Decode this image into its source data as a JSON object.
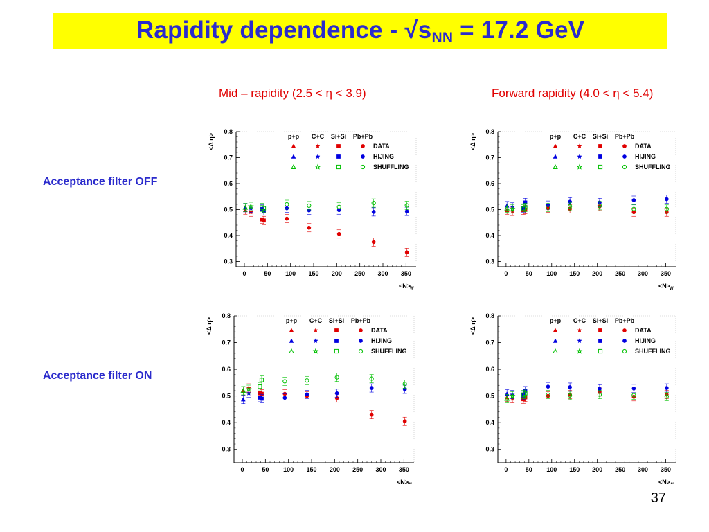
{
  "slide": {
    "title_main": "Rapidity dependence - √s",
    "title_sub": "NN",
    "title_tail": " = 17.2 GeV",
    "page_number": "37"
  },
  "columns": {
    "mid": "Mid – rapidity (2.5 < η < 3.9)",
    "forward": "Forward rapidity (4.0 < η < 5.4)"
  },
  "rows": {
    "off": "Acceptance filter OFF",
    "on": "Acceptance filter ON"
  },
  "colors": {
    "title": "#2b2bcc",
    "title_bar": "#ffff00",
    "column_headers": "#e00000",
    "row_labels": "#2b2bcc",
    "DATA": "#e00000",
    "HIJING": "#0000e0",
    "SHUFFLING": "#00c000"
  },
  "legend": {
    "columns": [
      "p+p",
      "C+C",
      "Si+Si",
      "Pb+Pb"
    ],
    "rows": [
      "DATA",
      "HIJING",
      "SHUFFLING"
    ]
  },
  "chart_data": [
    {
      "id": "mid-off",
      "type": "scatter",
      "xlabel": "<N_W>",
      "ylabel": "<Δ η>",
      "xlim": [
        -18,
        372
      ],
      "ylim": [
        0.28,
        0.8
      ],
      "xticks": [
        0,
        50,
        100,
        150,
        200,
        250,
        300,
        350
      ],
      "yticks": [
        0.3,
        0.4,
        0.5,
        0.6,
        0.7,
        0.8
      ],
      "series": [
        {
          "name": "DATA",
          "points": [
            {
              "x": 2,
              "y": 0.498,
              "sys": "pp"
            },
            {
              "x": 14,
              "y": 0.49,
              "sys": "CC"
            },
            {
              "x": 38,
              "y": 0.462,
              "sys": "SiSi"
            },
            {
              "x": 42,
              "y": 0.458,
              "sys": "SiSi"
            },
            {
              "x": 92,
              "y": 0.465,
              "sys": "PbPb"
            },
            {
              "x": 140,
              "y": 0.43,
              "sys": "PbPb"
            },
            {
              "x": 205,
              "y": 0.406,
              "sys": "PbPb"
            },
            {
              "x": 280,
              "y": 0.375,
              "sys": "PbPb"
            },
            {
              "x": 352,
              "y": 0.335,
              "sys": "PbPb"
            }
          ]
        },
        {
          "name": "HIJING",
          "points": [
            {
              "x": 2,
              "y": 0.507,
              "sys": "pp"
            },
            {
              "x": 14,
              "y": 0.505,
              "sys": "CC"
            },
            {
              "x": 38,
              "y": 0.502,
              "sys": "SiSi"
            },
            {
              "x": 42,
              "y": 0.495,
              "sys": "SiSi"
            },
            {
              "x": 92,
              "y": 0.505,
              "sys": "PbPb"
            },
            {
              "x": 140,
              "y": 0.497,
              "sys": "PbPb"
            },
            {
              "x": 205,
              "y": 0.498,
              "sys": "PbPb"
            },
            {
              "x": 280,
              "y": 0.491,
              "sys": "PbPb"
            },
            {
              "x": 352,
              "y": 0.493,
              "sys": "PbPb"
            }
          ]
        },
        {
          "name": "SHUFFLING",
          "points": [
            {
              "x": 2,
              "y": 0.508,
              "sys": "pp"
            },
            {
              "x": 14,
              "y": 0.512,
              "sys": "CC"
            },
            {
              "x": 38,
              "y": 0.508,
              "sys": "SiSi"
            },
            {
              "x": 42,
              "y": 0.505,
              "sys": "SiSi"
            },
            {
              "x": 92,
              "y": 0.52,
              "sys": "PbPb"
            },
            {
              "x": 140,
              "y": 0.515,
              "sys": "PbPb"
            },
            {
              "x": 205,
              "y": 0.51,
              "sys": "PbPb"
            },
            {
              "x": 280,
              "y": 0.525,
              "sys": "PbPb"
            },
            {
              "x": 352,
              "y": 0.516,
              "sys": "PbPb"
            }
          ]
        }
      ]
    },
    {
      "id": "fwd-off",
      "type": "scatter",
      "xlabel": "<N_W>",
      "ylabel": "<Δ η>",
      "xlim": [
        -18,
        372
      ],
      "ylim": [
        0.28,
        0.8
      ],
      "xticks": [
        0,
        50,
        100,
        150,
        200,
        250,
        300,
        350
      ],
      "yticks": [
        0.3,
        0.4,
        0.5,
        0.6,
        0.7,
        0.8
      ],
      "series": [
        {
          "name": "DATA",
          "points": [
            {
              "x": 2,
              "y": 0.498,
              "sys": "pp"
            },
            {
              "x": 14,
              "y": 0.493,
              "sys": "CC"
            },
            {
              "x": 38,
              "y": 0.497,
              "sys": "SiSi"
            },
            {
              "x": 42,
              "y": 0.5,
              "sys": "SiSi"
            },
            {
              "x": 92,
              "y": 0.505,
              "sys": "PbPb"
            },
            {
              "x": 140,
              "y": 0.503,
              "sys": "PbPb"
            },
            {
              "x": 205,
              "y": 0.512,
              "sys": "PbPb"
            },
            {
              "x": 280,
              "y": 0.49,
              "sys": "PbPb"
            },
            {
              "x": 352,
              "y": 0.49,
              "sys": "PbPb"
            }
          ]
        },
        {
          "name": "HIJING",
          "points": [
            {
              "x": 2,
              "y": 0.515,
              "sys": "pp"
            },
            {
              "x": 14,
              "y": 0.51,
              "sys": "CC"
            },
            {
              "x": 38,
              "y": 0.506,
              "sys": "SiSi"
            },
            {
              "x": 42,
              "y": 0.527,
              "sys": "SiSi"
            },
            {
              "x": 92,
              "y": 0.517,
              "sys": "PbPb"
            },
            {
              "x": 140,
              "y": 0.53,
              "sys": "PbPb"
            },
            {
              "x": 205,
              "y": 0.527,
              "sys": "PbPb"
            },
            {
              "x": 280,
              "y": 0.536,
              "sys": "PbPb"
            },
            {
              "x": 352,
              "y": 0.54,
              "sys": "PbPb"
            }
          ]
        },
        {
          "name": "SHUFFLING",
          "points": [
            {
              "x": 2,
              "y": 0.505,
              "sys": "pp"
            },
            {
              "x": 14,
              "y": 0.502,
              "sys": "CC"
            },
            {
              "x": 38,
              "y": 0.503,
              "sys": "SiSi"
            },
            {
              "x": 42,
              "y": 0.508,
              "sys": "SiSi"
            },
            {
              "x": 92,
              "y": 0.508,
              "sys": "PbPb"
            },
            {
              "x": 140,
              "y": 0.512,
              "sys": "PbPb"
            },
            {
              "x": 205,
              "y": 0.515,
              "sys": "PbPb"
            },
            {
              "x": 280,
              "y": 0.502,
              "sys": "PbPb"
            },
            {
              "x": 352,
              "y": 0.502,
              "sys": "PbPb"
            }
          ]
        }
      ]
    },
    {
      "id": "mid-on",
      "type": "scatter",
      "xlabel": "<N_W>",
      "ylabel": "<Δ η>",
      "xlim": [
        -18,
        372
      ],
      "ylim": [
        0.25,
        0.8
      ],
      "xticks": [
        0,
        50,
        100,
        150,
        200,
        250,
        300,
        350
      ],
      "yticks": [
        0.3,
        0.4,
        0.5,
        0.6,
        0.7,
        0.8
      ],
      "series": [
        {
          "name": "DATA",
          "points": [
            {
              "x": 2,
              "y": 0.518,
              "sys": "pp"
            },
            {
              "x": 14,
              "y": 0.53,
              "sys": "CC"
            },
            {
              "x": 38,
              "y": 0.51,
              "sys": "SiSi"
            },
            {
              "x": 42,
              "y": 0.508,
              "sys": "SiSi"
            },
            {
              "x": 92,
              "y": 0.508,
              "sys": "PbPb"
            },
            {
              "x": 140,
              "y": 0.5,
              "sys": "PbPb"
            },
            {
              "x": 205,
              "y": 0.492,
              "sys": "PbPb"
            },
            {
              "x": 280,
              "y": 0.43,
              "sys": "PbPb"
            },
            {
              "x": 352,
              "y": 0.405,
              "sys": "PbPb"
            }
          ]
        },
        {
          "name": "HIJING",
          "points": [
            {
              "x": 2,
              "y": 0.487,
              "sys": "pp"
            },
            {
              "x": 14,
              "y": 0.51,
              "sys": "CC"
            },
            {
              "x": 38,
              "y": 0.494,
              "sys": "SiSi"
            },
            {
              "x": 42,
              "y": 0.49,
              "sys": "SiSi"
            },
            {
              "x": 92,
              "y": 0.493,
              "sys": "PbPb"
            },
            {
              "x": 140,
              "y": 0.506,
              "sys": "PbPb"
            },
            {
              "x": 205,
              "y": 0.51,
              "sys": "PbPb"
            },
            {
              "x": 280,
              "y": 0.53,
              "sys": "PbPb"
            },
            {
              "x": 352,
              "y": 0.525,
              "sys": "PbPb"
            }
          ]
        },
        {
          "name": "SHUFFLING",
          "points": [
            {
              "x": 2,
              "y": 0.52,
              "sys": "pp"
            },
            {
              "x": 14,
              "y": 0.525,
              "sys": "CC"
            },
            {
              "x": 38,
              "y": 0.535,
              "sys": "SiSi"
            },
            {
              "x": 42,
              "y": 0.56,
              "sys": "SiSi"
            },
            {
              "x": 92,
              "y": 0.555,
              "sys": "PbPb"
            },
            {
              "x": 140,
              "y": 0.558,
              "sys": "PbPb"
            },
            {
              "x": 205,
              "y": 0.57,
              "sys": "PbPb"
            },
            {
              "x": 280,
              "y": 0.565,
              "sys": "PbPb"
            },
            {
              "x": 352,
              "y": 0.545,
              "sys": "PbPb"
            }
          ]
        }
      ]
    },
    {
      "id": "fwd-on",
      "type": "scatter",
      "xlabel": "<N_W>",
      "ylabel": "<Δ η>",
      "xlim": [
        -18,
        372
      ],
      "ylim": [
        0.25,
        0.8
      ],
      "xticks": [
        0,
        50,
        100,
        150,
        200,
        250,
        300,
        350
      ],
      "yticks": [
        0.3,
        0.4,
        0.5,
        0.6,
        0.7,
        0.8
      ],
      "series": [
        {
          "name": "DATA",
          "points": [
            {
              "x": 2,
              "y": 0.495,
              "sys": "pp"
            },
            {
              "x": 14,
              "y": 0.49,
              "sys": "CC"
            },
            {
              "x": 38,
              "y": 0.488,
              "sys": "SiSi"
            },
            {
              "x": 42,
              "y": 0.495,
              "sys": "SiSi"
            },
            {
              "x": 92,
              "y": 0.5,
              "sys": "PbPb"
            },
            {
              "x": 140,
              "y": 0.505,
              "sys": "PbPb"
            },
            {
              "x": 205,
              "y": 0.515,
              "sys": "PbPb"
            },
            {
              "x": 280,
              "y": 0.497,
              "sys": "PbPb"
            },
            {
              "x": 352,
              "y": 0.505,
              "sys": "PbPb"
            }
          ]
        },
        {
          "name": "HIJING",
          "points": [
            {
              "x": 2,
              "y": 0.508,
              "sys": "pp"
            },
            {
              "x": 14,
              "y": 0.505,
              "sys": "CC"
            },
            {
              "x": 38,
              "y": 0.502,
              "sys": "SiSi"
            },
            {
              "x": 42,
              "y": 0.52,
              "sys": "SiSi"
            },
            {
              "x": 92,
              "y": 0.535,
              "sys": "PbPb"
            },
            {
              "x": 140,
              "y": 0.533,
              "sys": "PbPb"
            },
            {
              "x": 205,
              "y": 0.527,
              "sys": "PbPb"
            },
            {
              "x": 280,
              "y": 0.528,
              "sys": "PbPb"
            },
            {
              "x": 352,
              "y": 0.53,
              "sys": "PbPb"
            }
          ]
        },
        {
          "name": "SHUFFLING",
          "points": [
            {
              "x": 2,
              "y": 0.49,
              "sys": "pp"
            },
            {
              "x": 14,
              "y": 0.5,
              "sys": "CC"
            },
            {
              "x": 38,
              "y": 0.505,
              "sys": "SiSi"
            },
            {
              "x": 42,
              "y": 0.51,
              "sys": "SiSi"
            },
            {
              "x": 92,
              "y": 0.505,
              "sys": "PbPb"
            },
            {
              "x": 140,
              "y": 0.502,
              "sys": "PbPb"
            },
            {
              "x": 205,
              "y": 0.505,
              "sys": "PbPb"
            },
            {
              "x": 280,
              "y": 0.503,
              "sys": "PbPb"
            },
            {
              "x": 352,
              "y": 0.498,
              "sys": "PbPb"
            }
          ]
        }
      ]
    }
  ]
}
